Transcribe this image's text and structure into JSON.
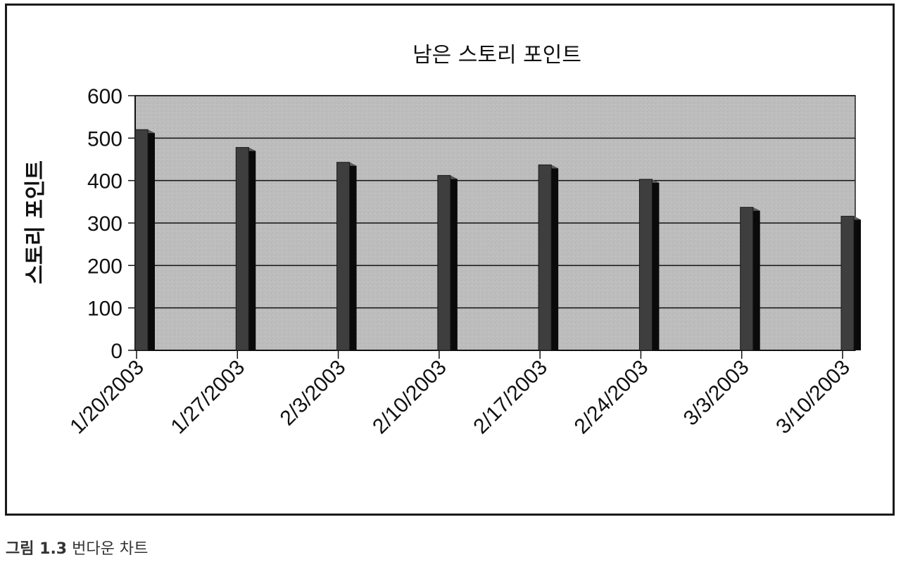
{
  "chart_data": {
    "type": "bar",
    "title": "남은 스토리 포인트",
    "ylabel": "스토리 포인트",
    "xlabel": "",
    "categories": [
      "1/20/2003",
      "1/27/2003",
      "2/3/2003",
      "2/10/2003",
      "2/17/2003",
      "2/24/2003",
      "3/3/2003",
      "3/10/2003"
    ],
    "values": [
      520,
      478,
      443,
      412,
      437,
      403,
      337,
      316
    ],
    "ylim": [
      0,
      600
    ],
    "yticks": [
      0,
      100,
      200,
      300,
      400,
      500,
      600
    ],
    "grid": true,
    "legend": "none",
    "style": "3d-column",
    "colors": {
      "plot_bg": "#bdbdbd",
      "bar_front": "#3e3e3e",
      "bar_side": "#0a0a0a",
      "bar_top": "#5a5a5a",
      "grid": "#111111"
    }
  },
  "caption": {
    "label": "그림 1.3",
    "text": "번다운 차트"
  }
}
